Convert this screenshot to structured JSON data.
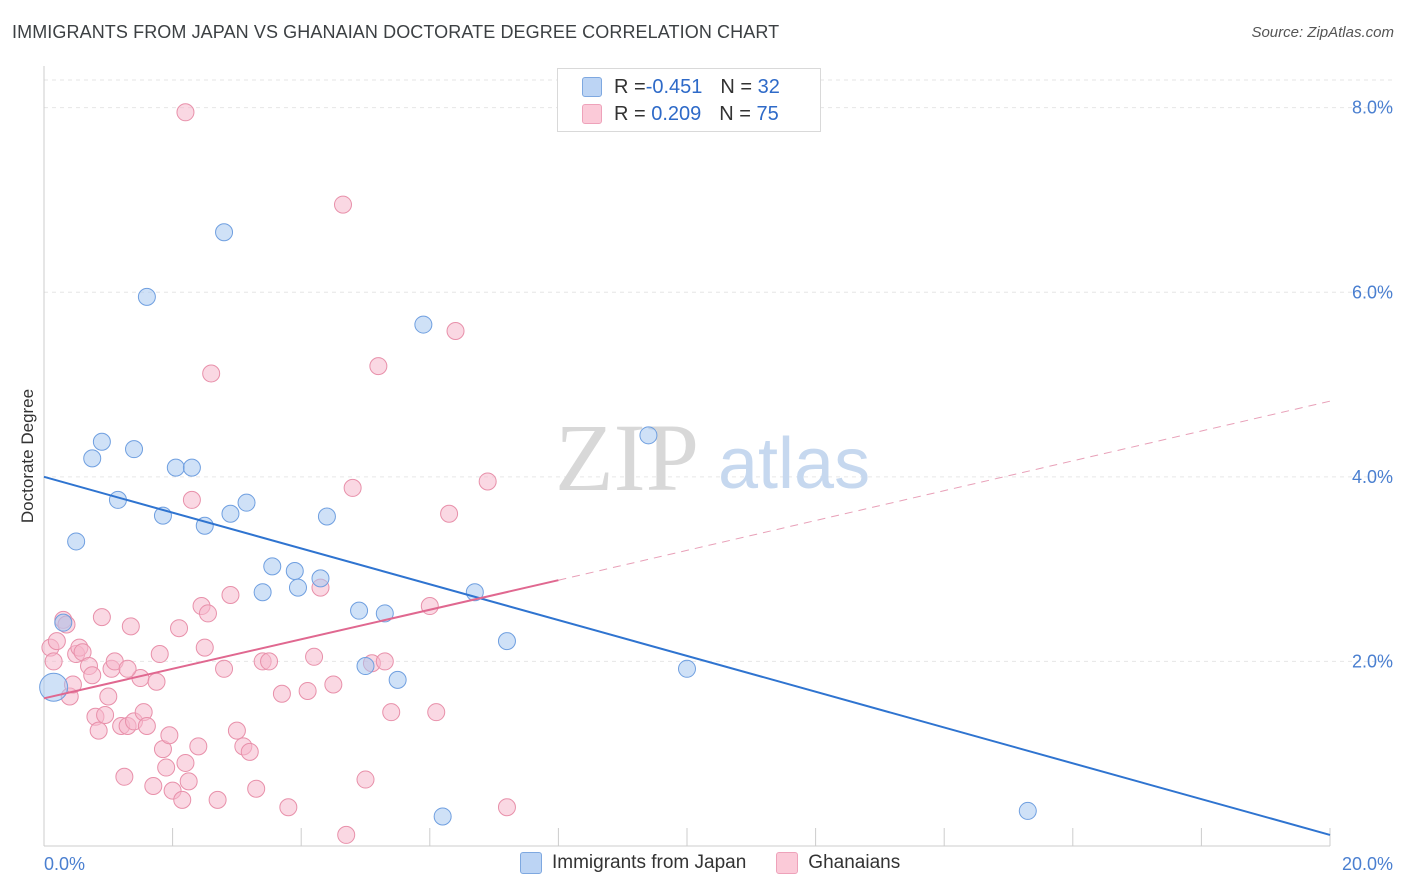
{
  "header": {
    "title": "IMMIGRANTS FROM JAPAN VS GHANAIAN DOCTORATE DEGREE CORRELATION CHART",
    "source": "Source: ZipAtlas.com"
  },
  "watermark": {
    "zip": "ZIP",
    "atlas": "atlas"
  },
  "legend": {
    "rows": [
      {
        "r_label": "R = ",
        "r_value": "-0.451",
        "n_label": "N = ",
        "n_value": "32",
        "color": "#a8c8f0"
      },
      {
        "r_label": "R = ",
        "r_value": " 0.209",
        "n_label": "N = ",
        "n_value": "75",
        "color": "#f5b8cc"
      }
    ]
  },
  "bottom_legend": {
    "series1": "Immigrants from Japan",
    "series2": "Ghanaians"
  },
  "chart_data": {
    "type": "scatter",
    "title": "IMMIGRANTS FROM JAPAN VS GHANAIAN DOCTORATE DEGREE CORRELATION CHART",
    "xlabel": "",
    "ylabel": "Doctorate Degree",
    "xlim": [
      0,
      20
    ],
    "ylim": [
      0,
      8.3
    ],
    "x_tick_labels": [
      "0.0%",
      "20.0%"
    ],
    "y_ticks": [
      2,
      4,
      6,
      8
    ],
    "y_tick_labels": [
      "2.0%",
      "4.0%",
      "6.0%",
      "8.0%"
    ],
    "grid": true,
    "series": [
      {
        "name": "Immigrants from Japan",
        "color": "#6f9fe0",
        "fill": "#a8c8f0",
        "trend": {
          "x0": 0,
          "y0": 4.0,
          "x1": 20,
          "y1": 0.12,
          "color": "#2f74d0"
        },
        "points": [
          [
            0.15,
            1.72
          ],
          [
            0.3,
            2.42
          ],
          [
            0.5,
            3.3
          ],
          [
            0.75,
            4.2
          ],
          [
            0.9,
            4.38
          ],
          [
            1.15,
            3.75
          ],
          [
            1.4,
            4.3
          ],
          [
            1.6,
            5.95
          ],
          [
            1.85,
            3.58
          ],
          [
            2.05,
            4.1
          ],
          [
            2.3,
            4.1
          ],
          [
            2.5,
            3.47
          ],
          [
            2.8,
            6.65
          ],
          [
            2.9,
            3.6
          ],
          [
            3.15,
            3.72
          ],
          [
            3.4,
            2.75
          ],
          [
            3.55,
            3.03
          ],
          [
            3.9,
            2.98
          ],
          [
            3.95,
            2.8
          ],
          [
            4.3,
            2.9
          ],
          [
            4.4,
            3.57
          ],
          [
            4.9,
            2.55
          ],
          [
            5.0,
            1.95
          ],
          [
            5.3,
            2.52
          ],
          [
            5.5,
            1.8
          ],
          [
            5.9,
            5.65
          ],
          [
            6.2,
            0.32
          ],
          [
            6.7,
            2.75
          ],
          [
            7.2,
            2.22
          ],
          [
            9.4,
            4.45
          ],
          [
            10.0,
            1.92
          ],
          [
            15.3,
            0.38
          ]
        ]
      },
      {
        "name": "Ghanaians",
        "color": "#e890aa",
        "fill": "#f5b8cc",
        "trend": {
          "x0": 0,
          "y0": 1.6,
          "x1": 8.0,
          "y1": 2.88,
          "color": "#e06890"
        },
        "trend_ext": {
          "x0": 8.0,
          "y0": 2.88,
          "x1": 20,
          "y1": 4.82
        },
        "points": [
          [
            0.1,
            2.15
          ],
          [
            0.15,
            2.0
          ],
          [
            0.2,
            2.22
          ],
          [
            0.3,
            2.45
          ],
          [
            0.35,
            2.4
          ],
          [
            0.4,
            1.62
          ],
          [
            0.45,
            1.75
          ],
          [
            0.5,
            2.08
          ],
          [
            0.55,
            2.15
          ],
          [
            0.6,
            2.1
          ],
          [
            0.7,
            1.95
          ],
          [
            0.75,
            1.85
          ],
          [
            0.8,
            1.4
          ],
          [
            0.85,
            1.25
          ],
          [
            0.9,
            2.48
          ],
          [
            0.95,
            1.42
          ],
          [
            1.0,
            1.62
          ],
          [
            1.05,
            1.92
          ],
          [
            1.1,
            2.0
          ],
          [
            1.2,
            1.3
          ],
          [
            1.25,
            0.75
          ],
          [
            1.3,
            1.3
          ],
          [
            1.35,
            2.38
          ],
          [
            1.4,
            1.35
          ],
          [
            1.5,
            1.82
          ],
          [
            1.55,
            1.45
          ],
          [
            1.6,
            1.3
          ],
          [
            1.7,
            0.65
          ],
          [
            1.75,
            1.78
          ],
          [
            1.8,
            2.08
          ],
          [
            1.85,
            1.05
          ],
          [
            1.9,
            0.85
          ],
          [
            1.95,
            1.2
          ],
          [
            2.0,
            0.6
          ],
          [
            2.1,
            2.36
          ],
          [
            2.15,
            0.5
          ],
          [
            2.2,
            0.9
          ],
          [
            2.25,
            0.7
          ],
          [
            2.3,
            3.75
          ],
          [
            2.4,
            1.08
          ],
          [
            2.45,
            2.6
          ],
          [
            2.5,
            2.15
          ],
          [
            2.55,
            2.52
          ],
          [
            2.6,
            5.12
          ],
          [
            2.7,
            0.5
          ],
          [
            2.8,
            1.92
          ],
          [
            2.9,
            2.72
          ],
          [
            3.0,
            1.25
          ],
          [
            3.1,
            1.08
          ],
          [
            3.2,
            1.02
          ],
          [
            3.3,
            0.62
          ],
          [
            3.4,
            2.0
          ],
          [
            3.5,
            2.0
          ],
          [
            3.7,
            1.65
          ],
          [
            3.8,
            0.42
          ],
          [
            4.1,
            1.68
          ],
          [
            4.2,
            2.05
          ],
          [
            4.3,
            2.8
          ],
          [
            4.5,
            1.75
          ],
          [
            4.65,
            6.95
          ],
          [
            4.7,
            0.12
          ],
          [
            4.8,
            3.88
          ],
          [
            5.0,
            0.72
          ],
          [
            5.1,
            1.98
          ],
          [
            5.2,
            5.2
          ],
          [
            5.3,
            2.0
          ],
          [
            5.4,
            1.45
          ],
          [
            6.0,
            2.6
          ],
          [
            6.1,
            1.45
          ],
          [
            6.3,
            3.6
          ],
          [
            6.4,
            5.58
          ],
          [
            6.9,
            3.95
          ],
          [
            7.2,
            0.42
          ],
          [
            2.2,
            7.95
          ],
          [
            1.3,
            1.92
          ]
        ]
      }
    ]
  }
}
